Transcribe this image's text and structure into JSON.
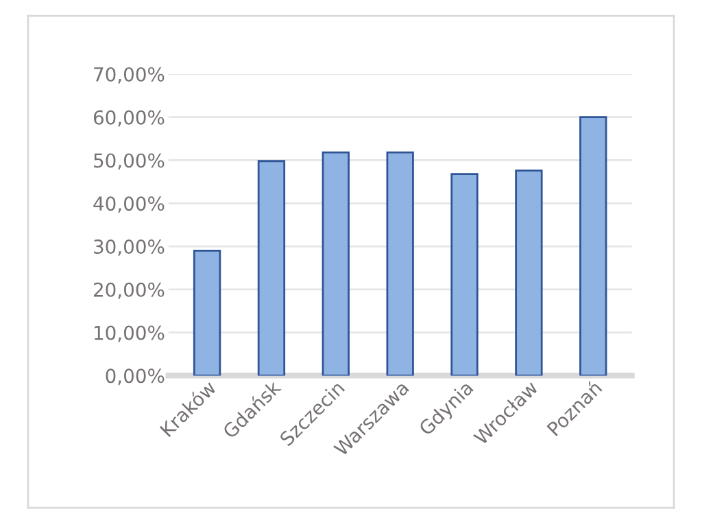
{
  "chart_data": {
    "type": "bar",
    "categories": [
      "Kraków",
      "Gdańsk",
      "Szczecin",
      "Warszawa",
      "Gdynia",
      "Wrocław",
      "Poznań"
    ],
    "values": [
      29,
      49.8,
      51.8,
      51.8,
      46.8,
      47.6,
      60
    ],
    "color": "#8fb4e3",
    "ylim": [
      0,
      70
    ],
    "yticks": [
      {
        "value": 0,
        "label": "0,00%"
      },
      {
        "value": 10,
        "label": "10,00%"
      },
      {
        "value": 20,
        "label": "20,00%"
      },
      {
        "value": 30,
        "label": "30,00%"
      },
      {
        "value": 40,
        "label": "40,00%"
      },
      {
        "value": 50,
        "label": "50,00%"
      },
      {
        "value": 60,
        "label": "60,00%"
      },
      {
        "value": 70,
        "label": "70,00%"
      }
    ],
    "grid": "y"
  }
}
